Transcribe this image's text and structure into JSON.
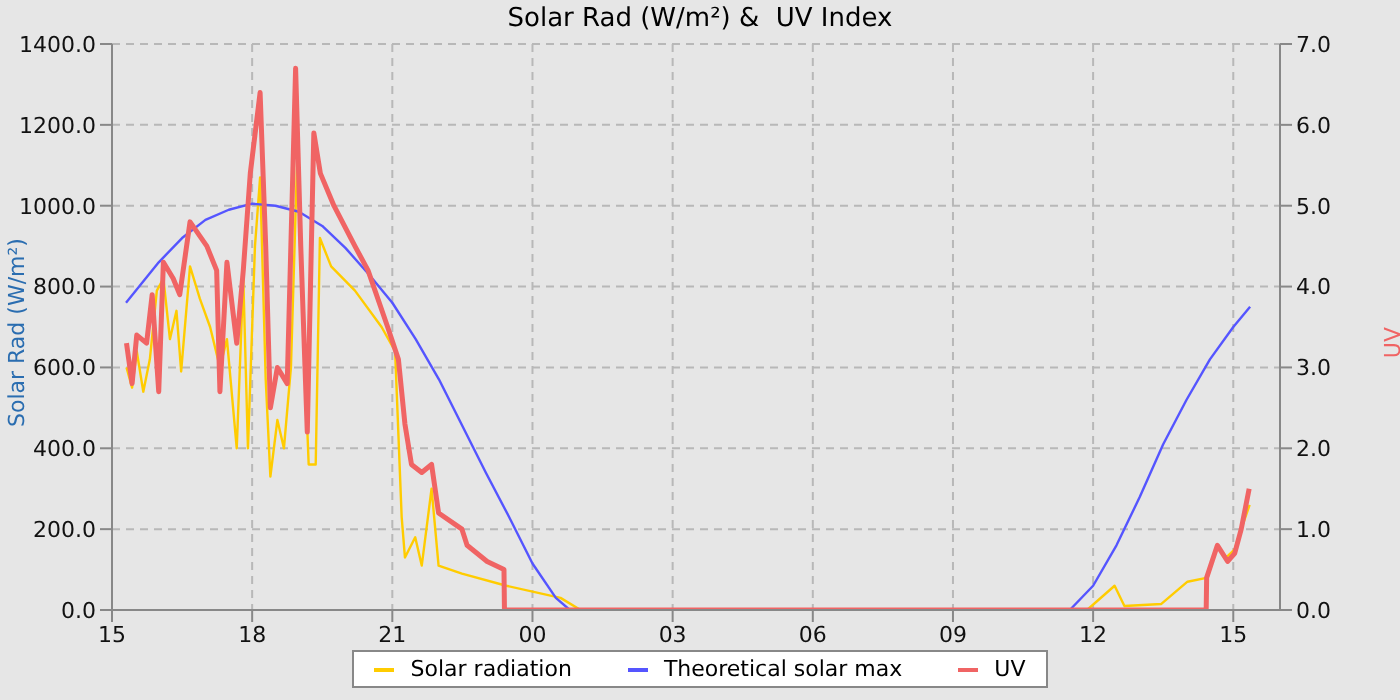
{
  "chart_data": {
    "type": "line",
    "title": "Solar Rad (W/m²) &  UV Index",
    "ylabel": "Solar Rad (W/m²)",
    "y2label": "UV",
    "xlim": [
      15,
      40
    ],
    "xticks": [
      {
        "value": 15,
        "label": "15"
      },
      {
        "value": 18,
        "label": "18"
      },
      {
        "value": 21,
        "label": "21"
      },
      {
        "value": 24,
        "label": "00"
      },
      {
        "value": 27,
        "label": "03"
      },
      {
        "value": 30,
        "label": "06"
      },
      {
        "value": 33,
        "label": "09"
      },
      {
        "value": 36,
        "label": "12"
      },
      {
        "value": 39,
        "label": "15"
      }
    ],
    "ylim": [
      0,
      1400
    ],
    "yticks": [
      {
        "value": 0,
        "label": "0.0"
      },
      {
        "value": 200,
        "label": "200.0"
      },
      {
        "value": 400,
        "label": "400.0"
      },
      {
        "value": 600,
        "label": "600.0"
      },
      {
        "value": 800,
        "label": "800.0"
      },
      {
        "value": 1000,
        "label": "1000.0"
      },
      {
        "value": 1200,
        "label": "1200.0"
      },
      {
        "value": 1400,
        "label": "1400.0"
      }
    ],
    "y2lim": [
      0,
      7
    ],
    "y2ticks": [
      {
        "value": 0,
        "label": "0.0"
      },
      {
        "value": 1,
        "label": "1.0"
      },
      {
        "value": 2,
        "label": "2.0"
      },
      {
        "value": 3,
        "label": "3.0"
      },
      {
        "value": 4,
        "label": "4.0"
      },
      {
        "value": 5,
        "label": "5.0"
      },
      {
        "value": 6,
        "label": "6.0"
      },
      {
        "value": 7,
        "label": "7.0"
      }
    ],
    "grid": true,
    "legend": "bottom",
    "line_style": "solid",
    "marker": "none",
    "series": [
      {
        "name": "Solar radiation",
        "color": "#ffcc00",
        "x": [
          15.31,
          15.43,
          15.53,
          15.67,
          15.81,
          15.96,
          16.1,
          16.24,
          16.38,
          16.48,
          16.67,
          16.88,
          17.1,
          17.31,
          17.46,
          17.67,
          17.81,
          17.91,
          18.06,
          18.17,
          18.29,
          18.39,
          18.54,
          18.68,
          18.83,
          18.97,
          19.08,
          19.21,
          19.36,
          19.45,
          19.69,
          20.2,
          20.77,
          21.06,
          21.2,
          21.27,
          21.49,
          21.63,
          21.84,
          21.99,
          22.49,
          23.44,
          24.6,
          25.03,
          35.87,
          36.46,
          36.67,
          37.46,
          38.02,
          38.45,
          38.66,
          38.85,
          39.03,
          39.17,
          39.35
        ],
        "values": [
          600,
          550,
          640,
          540,
          620,
          790,
          820,
          670,
          740,
          590,
          850,
          770,
          700,
          600,
          670,
          400,
          820,
          400,
          900,
          1070,
          570,
          330,
          470,
          400,
          600,
          1140,
          740,
          360,
          360,
          920,
          850,
          790,
          700,
          640,
          230,
          130,
          180,
          110,
          300,
          110,
          90,
          60,
          30,
          0,
          0,
          60,
          10,
          15,
          70,
          80,
          160,
          130,
          150,
          200,
          260
        ]
      },
      {
        "name": "Theoretical solar max",
        "color": "#5555ff",
        "x": [
          15.3,
          16,
          16.5,
          17,
          17.5,
          18,
          18.5,
          19,
          19.5,
          20,
          20.5,
          21,
          21.5,
          22,
          22.5,
          23,
          23.5,
          24,
          24.5,
          24.8,
          35.5,
          36,
          36.5,
          37,
          37.5,
          38,
          38.5,
          39,
          39.36
        ],
        "values": [
          760,
          860,
          920,
          965,
          990,
          1005,
          1000,
          985,
          950,
          895,
          830,
          760,
          670,
          570,
          455,
          340,
          230,
          115,
          30,
          0,
          0,
          60,
          160,
          280,
          410,
          520,
          620,
          700,
          750
        ]
      },
      {
        "name": "UV",
        "color": "#f06464",
        "axis": "y2",
        "x": [
          15.31,
          15.43,
          15.53,
          15.74,
          15.86,
          16.0,
          16.1,
          16.31,
          16.45,
          16.67,
          17.03,
          17.24,
          17.31,
          17.46,
          17.67,
          17.81,
          17.96,
          18.17,
          18.29,
          18.39,
          18.54,
          18.75,
          18.93,
          19.04,
          19.18,
          19.32,
          19.46,
          19.75,
          20.2,
          20.48,
          20.9,
          21.13,
          21.27,
          21.41,
          21.63,
          21.84,
          21.99,
          22.49,
          22.6,
          23.03,
          23.39,
          23.4,
          38.42,
          38.43,
          38.66,
          38.88,
          39.03,
          39.17,
          39.34
        ],
        "values": [
          3.3,
          2.8,
          3.4,
          3.3,
          3.9,
          2.7,
          4.3,
          4.1,
          3.9,
          4.8,
          4.5,
          4.2,
          2.7,
          4.3,
          3.3,
          4.2,
          5.4,
          6.4,
          4.5,
          2.5,
          3,
          2.8,
          6.7,
          4.5,
          2.2,
          5.9,
          5.4,
          5,
          4.5,
          4.2,
          3.5,
          3.1,
          2.3,
          1.8,
          1.7,
          1.8,
          1.2,
          1,
          0.8,
          0.6,
          0.5,
          0,
          0,
          0.4,
          0.8,
          0.6,
          0.7,
          1,
          1.5
        ]
      }
    ]
  }
}
